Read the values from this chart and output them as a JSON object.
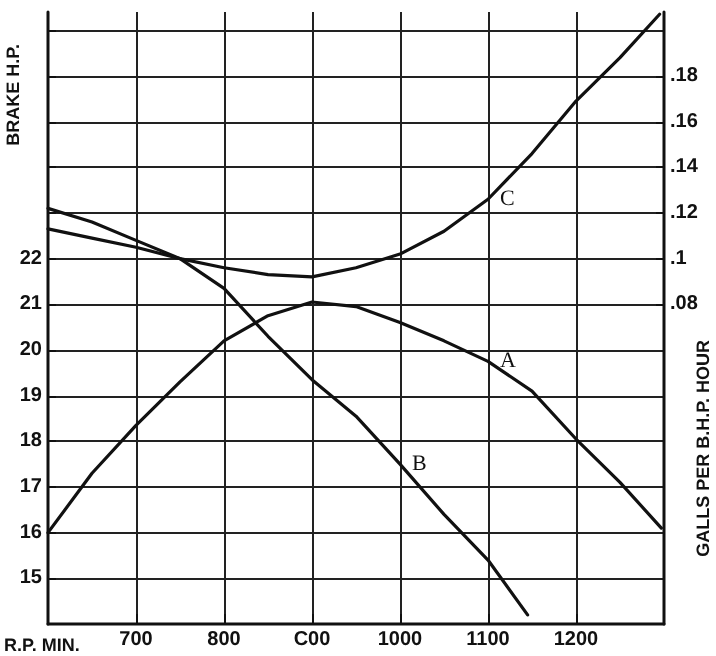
{
  "chart_data": {
    "type": "line",
    "xlabel": "R.P. MIN.",
    "ylabel": "BRAKE H.P.",
    "y2label": "GALLS PER B.H.P. HOUR",
    "xlim": [
      600,
      1300
    ],
    "xticks": [
      700,
      800,
      {
        "value": 900,
        "label": "C00"
      },
      1000,
      1100,
      1200
    ],
    "ylim": [
      14,
      27.4
    ],
    "yticks": [
      15,
      16,
      17,
      18,
      19,
      20,
      21,
      22,
      {
        "value": 23,
        "label": null
      },
      {
        "value": 24,
        "label": null
      },
      {
        "value": 25,
        "label": null
      },
      {
        "value": 26,
        "label": null
      },
      {
        "value": 27,
        "label": null
      }
    ],
    "y2lim": [
      -0.06,
      0.208
    ],
    "y2ticks": [
      {
        "value": 0.08,
        "label": ".08"
      },
      {
        "value": 0.1,
        "label": ".1"
      },
      {
        "value": 0.12,
        "label": ".12"
      },
      {
        "value": 0.14,
        "label": ".14"
      },
      {
        "value": 0.16,
        "label": ".16"
      },
      {
        "value": 0.18,
        "label": ".18"
      }
    ],
    "grid": true,
    "legend": false,
    "marker": "none",
    "line_style": "solid",
    "series": [
      {
        "name": "A",
        "color": "#111111",
        "x": [
          600,
          650,
          700,
          750,
          800,
          850,
          900,
          950,
          1000,
          1050,
          1100,
          1150,
          1200,
          1250,
          1297
        ],
        "values": [
          16,
          17.3,
          18.35,
          19.3,
          20.2,
          20.75,
          21.05,
          20.95,
          20.6,
          20.2,
          19.75,
          19.1,
          18.05,
          17.1,
          16.1
        ]
      },
      {
        "name": "B",
        "color": "#111111",
        "x": [
          600,
          650,
          700,
          750,
          800,
          850,
          900,
          950,
          1000,
          1050,
          1100,
          1145
        ],
        "values": [
          23.1,
          22.8,
          22.4,
          22.0,
          21.35,
          20.3,
          19.35,
          18.55,
          17.5,
          16.4,
          15.4,
          14.2
        ]
      },
      {
        "name": "C",
        "color": "#111111",
        "axis": "y2",
        "x": [
          600,
          650,
          700,
          750,
          800,
          850,
          900,
          950,
          1000,
          1050,
          1100,
          1150,
          1200,
          1250,
          1295
        ],
        "values": [
          0.113,
          0.109,
          0.105,
          0.1,
          0.096,
          0.093,
          0.092,
          0.096,
          0.102,
          0.112,
          0.126,
          0.146,
          0.169,
          0.188,
          0.207
        ]
      }
    ]
  }
}
